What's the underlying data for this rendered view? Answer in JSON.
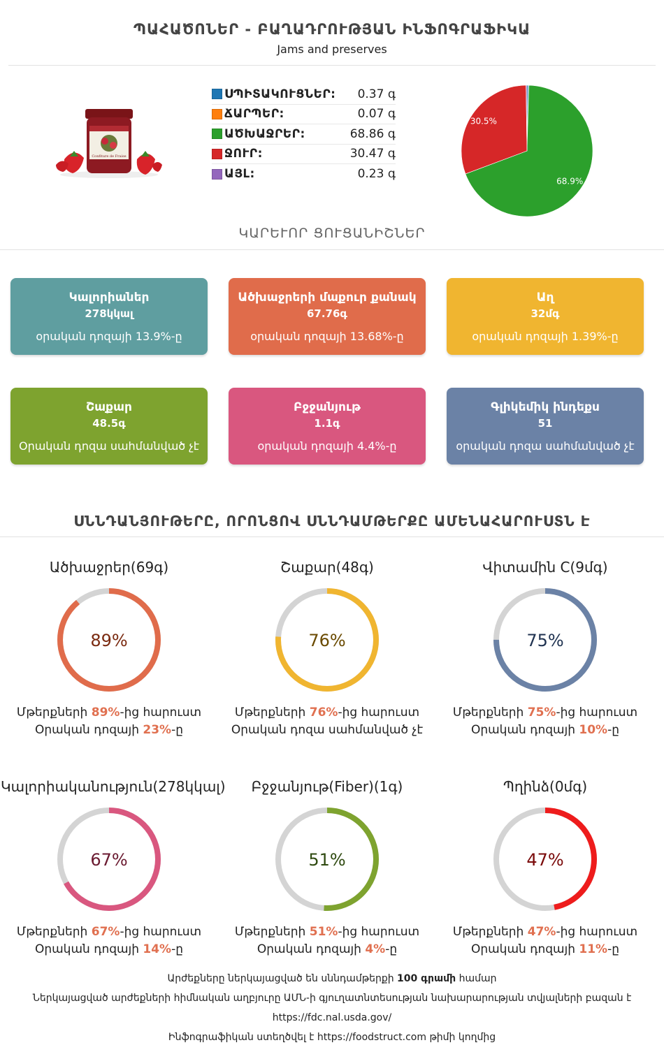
{
  "header": {
    "title": "ՊԱՀԱԾՈՆԵՐ - ԲԱՂԱԴՐՈՒԹՅԱՆ ԻՆՖՈԳՐԱՖԻԿԱ",
    "subtitle": "Jams and preserves"
  },
  "product_image": {
    "icon": "jam-jar-with-strawberries",
    "jar_label": "Confiture de Fraise"
  },
  "composition": [
    {
      "name": "ՍՊԻՏԱԿՈՒՑՆԵՐ:",
      "value": "0.37 գ",
      "color": "#1f77b4"
    },
    {
      "name": "ՃԱՐՊԵՐ:",
      "value": "0.07 գ",
      "color": "#ff7f0e"
    },
    {
      "name": "ԱԾԽԱՋՐԵՐ:",
      "value": "68.86 գ",
      "color": "#2ca02c"
    },
    {
      "name": "ՋՈՒՐ:",
      "value": "30.47 գ",
      "color": "#d62728"
    },
    {
      "name": "ԱՅԼ:",
      "value": "0.23 գ",
      "color": "#9467bd"
    }
  ],
  "chart_data": {
    "type": "pie",
    "categories": [
      "ՍՊԻՏԱԿՈՒՑՆԵՐ",
      "ՃԱՐՊԵՐ",
      "ԱԾԽԱՋՐԵՐ",
      "ՋՈՒՐ",
      "ԱՅԼ"
    ],
    "values": [
      0.37,
      0.07,
      68.86,
      30.47,
      0.23
    ],
    "colors": [
      "#1f77b4",
      "#ff7f0e",
      "#2ca02c",
      "#d62728",
      "#9467bd"
    ],
    "data_labels": [
      "",
      "",
      "68.9%",
      "30.5%",
      ""
    ]
  },
  "key_section_title": "ԿԱՐԵՒՈՐ ՑՈՒՑԱՆԻՇՆԵՐ",
  "key_cards": [
    {
      "name": "Կալորիաներ",
      "value": "278կկալ",
      "daily": "օրական դոզայի 13.9%-ը",
      "color": "#5f9ea0"
    },
    {
      "name": "Ածխաջրերի մաքուր քանակ",
      "value": "67.76գ",
      "daily": "օրական դոզայի 13.68%-ը",
      "color": "#e06c4b"
    },
    {
      "name": "Աղ",
      "value": "32մգ",
      "daily": "օրական դոզայի 1.39%-ը",
      "color": "#f0b530"
    },
    {
      "name": "Շաքար",
      "value": "48.5գ",
      "daily": "Օրական դոզա սահմանված չէ",
      "color": "#7ea32f"
    },
    {
      "name": "Բջջանյութ",
      "value": "1.1գ",
      "daily": "օրական դոզայի 4.4%-ը",
      "color": "#d9577f"
    },
    {
      "name": "Գլիկեմիկ ինդեքս",
      "value": "51",
      "daily": "օրական դոզա սահմանված չէ",
      "color": "#6b82a6"
    }
  ],
  "rich_section_title": "ՍՆՆԴԱՆՅՈՒԹԵՐԸ, ՈՐՈՆՑՈՎ ՍՆՆԴԱՄԹԵՐՔԸ ԱՄԵՆԱՀԱՐՈՒՍՏՆ Է",
  "rich_nutrients": [
    {
      "title": "Ածխաջրեր(69գ)",
      "percent": 89,
      "percent_label": "89%",
      "line1_pre": "Մթերքների ",
      "line1_hl": "89%",
      "line1_post": "-ից հարուստ",
      "line2_pre": "Օրական դոզայի ",
      "line2_hl": "23%",
      "line2_post": "-ը",
      "color": "#e06c4b",
      "text_color": "#7a2a10"
    },
    {
      "title": "Շաքար(48գ)",
      "percent": 76,
      "percent_label": "76%",
      "line1_pre": "Մթերքների ",
      "line1_hl": "76%",
      "line1_post": "-ից հարուստ",
      "line2_pre": "Օրական դոզա սահմանված չէ",
      "line2_hl": "",
      "line2_post": "",
      "color": "#f0b530",
      "text_color": "#6a4a00"
    },
    {
      "title": "Վիտամին C(9մգ)",
      "percent": 75,
      "percent_label": "75%",
      "line1_pre": "Մթերքների ",
      "line1_hl": "75%",
      "line1_post": "-ից հարուստ",
      "line2_pre": "Օրական դոզայի ",
      "line2_hl": "10%",
      "line2_post": "-ը",
      "color": "#6b82a6",
      "text_color": "#1f3250"
    },
    {
      "title": "Կալորիականություն(278կկալ)",
      "percent": 67,
      "percent_label": "67%",
      "line1_pre": "Մթերքների ",
      "line1_hl": "67%",
      "line1_post": "-ից հարուստ",
      "line2_pre": "Օրական դոզայի ",
      "line2_hl": "14%",
      "line2_post": "-ը",
      "color": "#d9577f",
      "text_color": "#6a1a30"
    },
    {
      "title": "Բջջանյութ(Fiber)(1գ)",
      "percent": 51,
      "percent_label": "51%",
      "line1_pre": "Մթերքների ",
      "line1_hl": "51%",
      "line1_post": "-ից հարուստ",
      "line2_pre": "Օրական դոզայի ",
      "line2_hl": "4%",
      "line2_post": "-ը",
      "color": "#7ea32f",
      "text_color": "#2f4a10"
    },
    {
      "title": "Պղինձ(0մգ)",
      "percent": 47,
      "percent_label": "47%",
      "line1_pre": "Մթերքների ",
      "line1_hl": "47%",
      "line1_post": "-ից հարուստ",
      "line2_pre": "Օրական դոզայի ",
      "line2_hl": "11%",
      "line2_post": "-ը",
      "color": "#ee1c1c",
      "text_color": "#7a0a0a"
    }
  ],
  "footer": {
    "line1_pre": "Արժեքները ներկայացված են սննդամթերքի ",
    "line1_bold": "100 գրամի",
    "line1_post": " համար",
    "line2": "Ներկայացված արժեքների հիմնական աղբյուրը ԱՄՆ-ի գյուղատնտեսության նախարարության տվյալների բազան է",
    "line3": "https://fdc.nal.usda.gov/",
    "line4": "Ինֆոգրաֆիկան ստեղծվել է https://foodstruct.com թիմի կողմից"
  }
}
